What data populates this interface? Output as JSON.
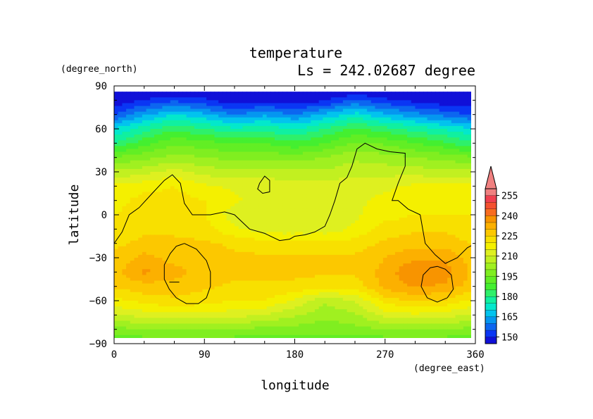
{
  "chart_data": {
    "type": "heatmap",
    "title": "temperature",
    "subtitle": "Ls = 242.02687 degree",
    "xlabel": "longitude",
    "ylabel": "latitude",
    "x_units": "(degree_east)",
    "y_units": "(degree_north)",
    "xlim": [
      0,
      360
    ],
    "ylim": [
      -90,
      90
    ],
    "x_ticks": [
      "0",
      "90",
      "180",
      "270",
      "360"
    ],
    "y_ticks": [
      "90",
      "60",
      "30",
      "0",
      "−30",
      "−60",
      "−90"
    ],
    "colorbar": {
      "levels": [
        145,
        150,
        155,
        160,
        165,
        170,
        175,
        180,
        185,
        190,
        195,
        200,
        205,
        210,
        215,
        220,
        225,
        230,
        235,
        240,
        245,
        250,
        255,
        260
      ],
      "tick_labels": [
        "150",
        "165",
        "180",
        "195",
        "210",
        "225",
        "240",
        "255"
      ],
      "colors": [
        "#1010d8",
        "#0a36f4",
        "#0c66f0",
        "#0596f0",
        "#02c3ee",
        "#03e8cc",
        "#10f0a0",
        "#2ef06a",
        "#44ef30",
        "#62ee24",
        "#80ee20",
        "#a0f020",
        "#c2f020",
        "#def020",
        "#f4f000",
        "#f8e000",
        "#fcc800",
        "#fcb000",
        "#f89400",
        "#f86c20",
        "#f45030",
        "#f04050",
        "#f08080"
      ],
      "extend": "max"
    },
    "longitudes": [
      0,
      30,
      60,
      90,
      120,
      150,
      180,
      210,
      240,
      270,
      300,
      330,
      360
    ],
    "latitudes": [
      86,
      80,
      70,
      60,
      50,
      40,
      30,
      20,
      10,
      0,
      -10,
      -20,
      -30,
      -40,
      -50,
      -60,
      -70,
      -80,
      -86
    ],
    "values": [
      [
        146,
        146,
        146,
        146,
        146,
        146,
        146,
        146,
        146,
        146,
        146,
        146,
        146
      ],
      [
        146,
        150,
        154,
        151,
        146,
        148,
        146,
        149,
        156,
        151,
        148,
        146,
        146
      ],
      [
        154,
        164,
        170,
        166,
        160,
        164,
        160,
        166,
        172,
        166,
        162,
        158,
        154
      ],
      [
        170,
        178,
        184,
        180,
        176,
        178,
        174,
        180,
        186,
        182,
        178,
        174,
        170
      ],
      [
        180,
        188,
        194,
        192,
        190,
        190,
        186,
        190,
        196,
        194,
        190,
        186,
        180
      ],
      [
        196,
        198,
        202,
        200,
        198,
        198,
        198,
        200,
        204,
        202,
        200,
        198,
        196
      ],
      [
        206,
        208,
        212,
        208,
        206,
        207,
        206,
        206,
        208,
        208,
        208,
        206,
        206
      ],
      [
        216,
        218,
        220,
        216,
        214,
        214,
        212,
        212,
        214,
        214,
        216,
        216,
        216
      ],
      [
        218,
        222,
        222,
        220,
        216,
        212,
        212,
        212,
        214,
        216,
        218,
        218,
        218
      ],
      [
        220,
        222,
        222,
        220,
        212,
        210,
        212,
        212,
        214,
        218,
        220,
        220,
        220
      ],
      [
        222,
        224,
        224,
        222,
        216,
        212,
        212,
        212,
        216,
        222,
        224,
        224,
        222
      ],
      [
        224,
        226,
        226,
        226,
        224,
        222,
        222,
        222,
        222,
        226,
        228,
        228,
        224
      ],
      [
        226,
        232,
        228,
        226,
        226,
        226,
        226,
        226,
        226,
        230,
        234,
        234,
        226
      ],
      [
        228,
        236,
        232,
        228,
        226,
        226,
        226,
        226,
        226,
        232,
        240,
        238,
        228
      ],
      [
        226,
        228,
        228,
        226,
        224,
        224,
        224,
        222,
        222,
        232,
        236,
        234,
        226
      ],
      [
        218,
        222,
        224,
        222,
        220,
        220,
        214,
        206,
        210,
        222,
        226,
        224,
        218
      ],
      [
        210,
        212,
        214,
        214,
        212,
        210,
        206,
        202,
        204,
        212,
        214,
        212,
        210
      ],
      [
        198,
        200,
        200,
        200,
        200,
        198,
        198,
        196,
        198,
        200,
        200,
        200,
        198
      ],
      [
        194,
        194,
        194,
        194,
        194,
        194,
        194,
        194,
        194,
        194,
        194,
        194,
        194
      ]
    ],
    "contours": [
      [
        [
          0,
          -20
        ],
        [
          8,
          -12
        ],
        [
          15,
          0
        ],
        [
          25,
          5
        ],
        [
          38,
          15
        ],
        [
          50,
          24
        ],
        [
          58,
          28
        ],
        [
          66,
          22
        ],
        [
          70,
          8
        ],
        [
          78,
          0
        ],
        [
          96,
          0
        ],
        [
          110,
          2
        ],
        [
          120,
          0
        ],
        [
          135,
          -10
        ],
        [
          150,
          -13
        ],
        [
          165,
          -18
        ],
        [
          175,
          -17
        ],
        [
          180,
          -15
        ],
        [
          190,
          -14
        ],
        [
          200,
          -12
        ],
        [
          210,
          -8
        ],
        [
          215,
          0
        ],
        [
          220,
          10
        ],
        [
          225,
          22
        ],
        [
          232,
          26
        ],
        [
          237,
          34
        ],
        [
          242,
          46
        ],
        [
          250,
          50
        ],
        [
          262,
          46
        ],
        [
          275,
          44
        ],
        [
          290,
          43
        ],
        [
          290,
          34
        ],
        [
          283,
          22
        ],
        [
          277,
          10
        ],
        [
          283,
          10
        ],
        [
          293,
          4
        ],
        [
          305,
          0
        ],
        [
          310,
          -20
        ],
        [
          320,
          -28
        ],
        [
          330,
          -34
        ],
        [
          342,
          -30
        ],
        [
          352,
          -23
        ],
        [
          360,
          -20
        ]
      ],
      [
        [
          145,
          22
        ],
        [
          150,
          27
        ],
        [
          155,
          24
        ],
        [
          155,
          16
        ],
        [
          148,
          15
        ],
        [
          143,
          18
        ],
        [
          145,
          22
        ]
      ],
      [
        [
          70,
          -20
        ],
        [
          82,
          -24
        ],
        [
          92,
          -32
        ],
        [
          96,
          -40
        ],
        [
          96,
          -50
        ],
        [
          92,
          -58
        ],
        [
          84,
          -62
        ],
        [
          72,
          -62
        ],
        [
          62,
          -58
        ],
        [
          55,
          -52
        ],
        [
          50,
          -45
        ],
        [
          50,
          -35
        ],
        [
          56,
          -27
        ],
        [
          62,
          -22
        ],
        [
          70,
          -20
        ]
      ],
      [
        [
          55,
          -47
        ],
        [
          65,
          -47
        ]
      ],
      [
        [
          322,
          -36
        ],
        [
          330,
          -38
        ],
        [
          336,
          -42
        ],
        [
          338,
          -52
        ],
        [
          332,
          -58
        ],
        [
          322,
          -61
        ],
        [
          312,
          -58
        ],
        [
          306,
          -50
        ],
        [
          308,
          -42
        ],
        [
          315,
          -37
        ],
        [
          322,
          -36
        ]
      ]
    ]
  }
}
